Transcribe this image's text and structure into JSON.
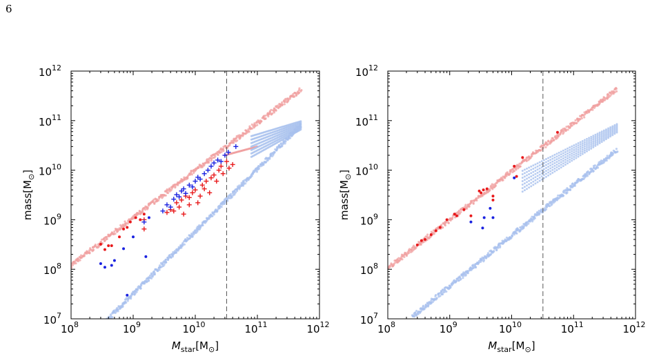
{
  "page_number": "6",
  "chart_data": [
    {
      "type": "scatter",
      "title": "",
      "xlabel": "M_star[M_⊙]",
      "ylabel": "mass[M_⊙]",
      "xscale": "log",
      "yscale": "log",
      "xlim": [
        100000000.0,
        1000000000000.0
      ],
      "ylim": [
        10000000.0,
        1000000000000.0
      ],
      "x_tick_labels": [
        "10^8",
        "10^9",
        "10^10",
        "10^11",
        "10^12"
      ],
      "y_tick_labels": [
        "10^7",
        "10^8",
        "10^9",
        "10^10",
        "10^11",
        "10^12"
      ],
      "vline_x": 32000000000.0,
      "grid": false,
      "colors": {
        "red_points": "#e8191b",
        "blue_points": "#1a22e0",
        "light_red": "#f0a0a0",
        "light_blue": "#a8c0ee"
      },
      "series": [
        {
          "marker": "plus",
          "color": "#e8191b",
          "points": [
            [
              3500000000.0,
              1400000000.0
            ],
            [
              4000000000.0,
              1600000000.0
            ],
            [
              4500000000.0,
              1500000000.0
            ],
            [
              5000000000.0,
              2200000000.0
            ],
            [
              5500000000.0,
              1800000000.0
            ],
            [
              6000000000.0,
              2500000000.0
            ],
            [
              6500000000.0,
              1300000000.0
            ],
            [
              7000000000.0,
              3000000000.0
            ],
            [
              8000000000.0,
              2000000000.0
            ],
            [
              8000000000.0,
              2800000000.0
            ],
            [
              9000000000.0,
              3500000000.0
            ],
            [
              10000000000.0,
              4000000000.0
            ],
            [
              11000000000.0,
              2200000000.0
            ],
            [
              12000000000.0,
              3000000000.0
            ],
            [
              13000000000.0,
              5000000000.0
            ],
            [
              14000000000.0,
              4200000000.0
            ],
            [
              15000000000.0,
              6000000000.0
            ],
            [
              17000000000.0,
              3500000000.0
            ],
            [
              18000000000.0,
              7000000000.0
            ],
            [
              20000000000.0,
              8000000000.0
            ],
            [
              22000000000.0,
              6000000000.0
            ],
            [
              24000000000.0,
              10000000000.0
            ],
            [
              26000000000.0,
              12000000000.0
            ],
            [
              28000000000.0,
              8500000000.0
            ],
            [
              32000000000.0,
              15000000000.0
            ],
            [
              35000000000.0,
              11000000000.0
            ],
            [
              40000000000.0,
              13000000000.0
            ],
            [
              1500000000.0,
              650000000.0
            ],
            [
              1500000000.0,
              1000000000.0
            ]
          ]
        },
        {
          "marker": "plus",
          "color": "#1a22e0",
          "points": [
            [
              3000000000.0,
              1500000000.0
            ],
            [
              3500000000.0,
              2000000000.0
            ],
            [
              4000000000.0,
              1800000000.0
            ],
            [
              4500000000.0,
              2600000000.0
            ],
            [
              5000000000.0,
              3200000000.0
            ],
            [
              5500000000.0,
              2900000000.0
            ],
            [
              6000000000.0,
              3800000000.0
            ],
            [
              6500000000.0,
              4200000000.0
            ],
            [
              7000000000.0,
              3400000000.0
            ],
            [
              8000000000.0,
              5000000000.0
            ],
            [
              9000000000.0,
              4600000000.0
            ],
            [
              10000000000.0,
              6000000000.0
            ],
            [
              11000000000.0,
              7200000000.0
            ],
            [
              12000000000.0,
              6600000000.0
            ],
            [
              14000000000.0,
              8500000000.0
            ],
            [
              16000000000.0,
              10000000000.0
            ],
            [
              18000000000.0,
              12000000000.0
            ],
            [
              20000000000.0,
              14000000000.0
            ],
            [
              23000000000.0,
              16000000000.0
            ],
            [
              26000000000.0,
              15000000000.0
            ],
            [
              30000000000.0,
              20000000000.0
            ],
            [
              34000000000.0,
              23000000000.0
            ],
            [
              45000000000.0,
              30000000000.0
            ],
            [
              1500000000.0,
              900000000.0
            ]
          ]
        },
        {
          "marker": "dot",
          "color": "#e8191b",
          "points": [
            [
              300000000.0,
              320000000.0
            ],
            [
              350000000.0,
              250000000.0
            ],
            [
              400000000.0,
              300000000.0
            ],
            [
              450000000.0,
              300000000.0
            ],
            [
              600000000.0,
              450000000.0
            ],
            [
              700000000.0,
              650000000.0
            ],
            [
              800000000.0,
              700000000.0
            ],
            [
              900000000.0,
              900000000.0
            ],
            [
              1100000000.0,
              1100000000.0
            ],
            [
              1300000000.0,
              1000000000.0
            ],
            [
              1500000000.0,
              1300000000.0
            ]
          ]
        },
        {
          "marker": "dot",
          "color": "#1a22e0",
          "points": [
            [
              300000000.0,
              130000000.0
            ],
            [
              350000000.0,
              110000000.0
            ],
            [
              450000000.0,
              120000000.0
            ],
            [
              500000000.0,
              150000000.0
            ],
            [
              700000000.0,
              260000000.0
            ],
            [
              1000000000.0,
              450000000.0
            ],
            [
              1600000000.0,
              180000000.0
            ],
            [
              1800000000.0,
              1100000000.0
            ],
            [
              800000000.0,
              30000000.0
            ]
          ]
        },
        {
          "marker": "dot",
          "color": "#f0a0a0",
          "band_from": [
            100000000.0,
            120000000.0
          ],
          "band_to": [
            500000000000.0,
            420000000000.0
          ],
          "trail": [
            [
              30000000000.0,
              20000000000.0
            ],
            [
              100000000000.0,
              30000000000.0
            ]
          ]
        },
        {
          "marker": "dot",
          "color": "#a8c0ee",
          "band_from": [
            300000000.0,
            7000000.0
          ],
          "band_to": [
            500000000000.0,
            80000000000.0
          ],
          "fan_from": [
            80000000000.0,
            30000000000.0
          ],
          "fan_to": [
            500000000000.0,
            80000000000.0
          ]
        }
      ]
    },
    {
      "type": "scatter",
      "title": "",
      "xlabel": "M_star[M_⊙]",
      "ylabel": "mass[M_⊙]",
      "xscale": "log",
      "yscale": "log",
      "xlim": [
        100000000.0,
        1000000000000.0
      ],
      "ylim": [
        10000000.0,
        1000000000000.0
      ],
      "x_tick_labels": [
        "10^8",
        "10^9",
        "10^10",
        "10^11",
        "10^12"
      ],
      "y_tick_labels": [
        "10^7",
        "10^8",
        "10^9",
        "10^10",
        "10^11",
        "10^12"
      ],
      "vline_x": 32000000000.0,
      "grid": false,
      "series": [
        {
          "marker": "dot",
          "color": "#e8191b",
          "points": [
            [
              300000000.0,
              310000000.0
            ],
            [
              350000000.0,
              380000000.0
            ],
            [
              400000000.0,
              400000000.0
            ],
            [
              500000000.0,
              500000000.0
            ],
            [
              600000000.0,
              600000000.0
            ],
            [
              700000000.0,
              700000000.0
            ],
            [
              900000000.0,
              1000000000.0
            ],
            [
              1200000000.0,
              1300000000.0
            ],
            [
              1300000000.0,
              1200000000.0
            ],
            [
              1700000000.0,
              1600000000.0
            ],
            [
              2200000000.0,
              1200000000.0
            ],
            [
              3000000000.0,
              3800000000.0
            ],
            [
              3200000000.0,
              3500000000.0
            ],
            [
              3500000000.0,
              4000000000.0
            ],
            [
              4000000000.0,
              4200000000.0
            ],
            [
              5000000000.0,
              3000000000.0
            ],
            [
              5000000000.0,
              2500000000.0
            ],
            [
              11000000000.0,
              12000000000.0
            ],
            [
              12000000000.0,
              7500000000.0
            ],
            [
              15000000000.0,
              18000000000.0
            ],
            [
              55000000000.0,
              58000000000.0
            ]
          ]
        },
        {
          "marker": "dot",
          "color": "#1a22e0",
          "points": [
            [
              2200000000.0,
              900000000.0
            ],
            [
              3400000000.0,
              680000000.0
            ],
            [
              3600000000.0,
              1100000000.0
            ],
            [
              4500000000.0,
              1700000000.0
            ],
            [
              5000000000.0,
              1100000000.0
            ],
            [
              11000000000.0,
              7000000000.0
            ]
          ]
        },
        {
          "marker": "dot",
          "color": "#f0a0a0",
          "band_from": [
            100000000.0,
            105000000.0
          ],
          "band_to": [
            500000000000.0,
            430000000000.0
          ]
        },
        {
          "marker": "dot",
          "color": "#a8c0ee",
          "band_from": [
            250000000.0,
            11000000.0
          ],
          "band_to": [
            500000000000.0,
            26000000000.0
          ],
          "fan_from": [
            15000000000.0,
            6000000000.0
          ],
          "fan_to": [
            500000000000.0,
            70000000000.0
          ]
        }
      ]
    }
  ]
}
